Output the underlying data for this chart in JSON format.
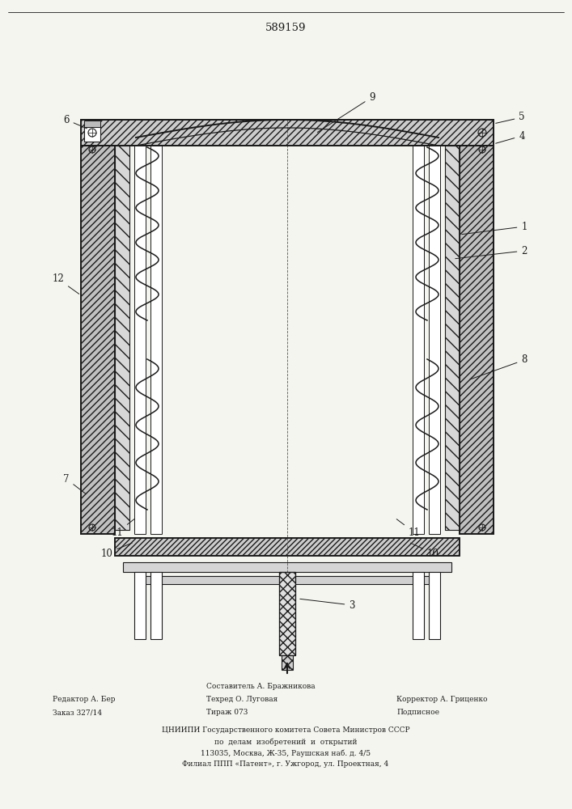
{
  "title": "589159",
  "bg_color": "#f5f5f0",
  "line_color": "#1a1a1a",
  "footer_left": [
    "Редактор А. Бер",
    "Заказ 327/14"
  ],
  "footer_center_top": [
    "Составитель А. Бражникова",
    "Техред О. Луговая",
    "Тираж 073"
  ],
  "footer_right": [
    "Корректор А. Гриценко",
    "Подписное"
  ],
  "footer_bottom": [
    "ЦНИИПИ Государственного комитета Совета Министров СССР",
    "по  делам  изобретений  и  открытий",
    "113035, Москва, Ж-35, Раушская наб. д. 4/5",
    "Филиал ППП «Патент», г. Ужгород, ул. Проектная, 4"
  ]
}
